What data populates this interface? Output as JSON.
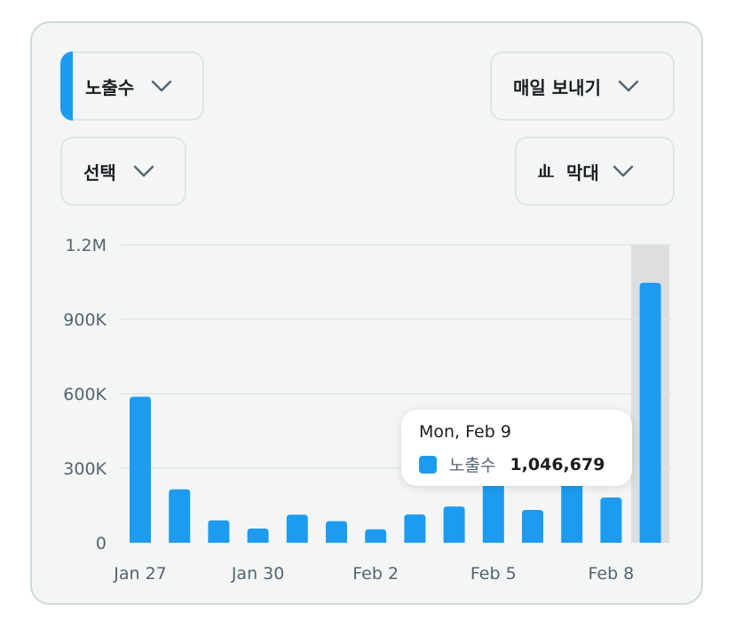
{
  "controls": {
    "metric_label": "노출수",
    "frequency_label": "매일 보내기",
    "select_label": "선택",
    "chart_type_label": "막대"
  },
  "colors": {
    "accent": "#1d9bf0",
    "hover_band": "#dddedf",
    "grid": "#dde3e5",
    "axis_text": "#536471"
  },
  "tooltip": {
    "date": "Mon, Feb 9",
    "series_name": "노출수",
    "value": "1,046,679"
  },
  "chart_data": {
    "type": "bar",
    "x": [
      "Jan 27",
      "Jan 28",
      "Jan 29",
      "Jan 30",
      "Jan 31",
      "Feb 1",
      "Feb 2",
      "Feb 3",
      "Feb 4",
      "Feb 5",
      "Feb 6",
      "Feb 7",
      "Feb 8",
      "Feb 9"
    ],
    "x_tick_labels": [
      "Jan 27",
      "Jan 30",
      "Feb 2",
      "Feb 5",
      "Feb 8"
    ],
    "x_tick_indices": [
      0,
      3,
      6,
      9,
      12
    ],
    "series": [
      {
        "name": "노출수",
        "values": [
          588000,
          215000,
          90000,
          57000,
          113000,
          87000,
          54000,
          114000,
          146000,
          255000,
          132000,
          250000,
          182000,
          1046679
        ]
      }
    ],
    "ylim": [
      0,
      1200000
    ],
    "y_ticks": [
      0,
      300000,
      600000,
      900000,
      1200000
    ],
    "y_tick_labels": [
      "0",
      "300K",
      "600K",
      "900K",
      "1.2M"
    ],
    "highlighted_index": 13,
    "grid": true
  }
}
